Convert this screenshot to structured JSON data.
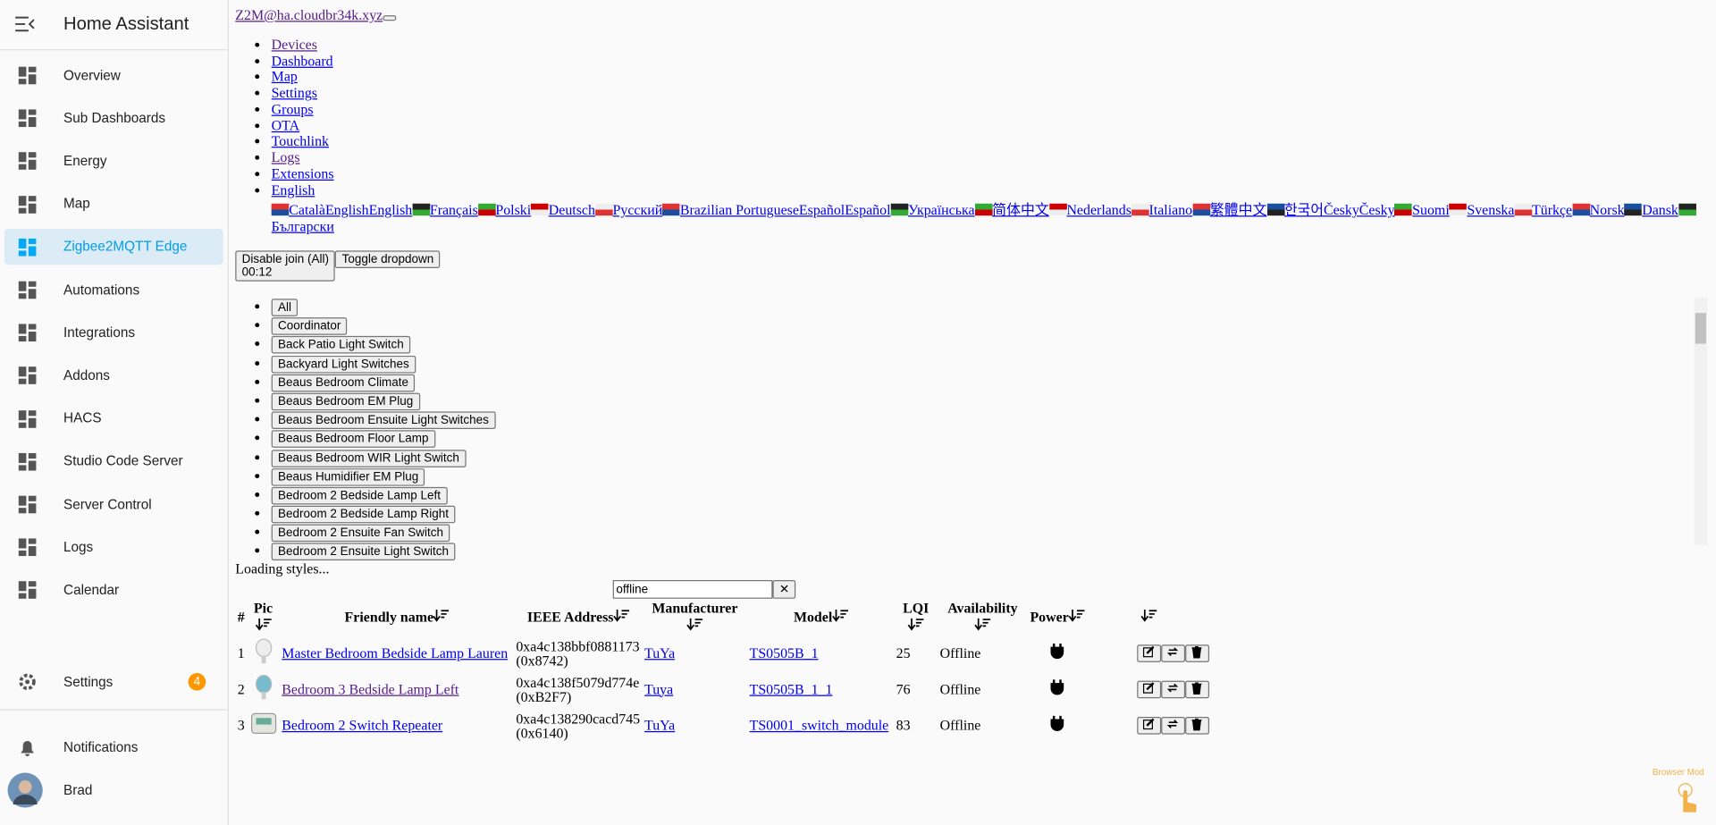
{
  "sidebar": {
    "title": "Home Assistant",
    "items": [
      {
        "label": "Overview"
      },
      {
        "label": "Sub Dashboards"
      },
      {
        "label": "Energy"
      },
      {
        "label": "Map"
      },
      {
        "label": "Zigbee2MQTT Edge"
      },
      {
        "label": "Automations"
      },
      {
        "label": "Integrations"
      },
      {
        "label": "Addons"
      },
      {
        "label": "HACS"
      },
      {
        "label": "Studio Code Server"
      },
      {
        "label": "Server Control"
      },
      {
        "label": "Logs"
      },
      {
        "label": "Calendar"
      }
    ],
    "settings": {
      "label": "Settings",
      "badge": "4"
    },
    "notifications": "Notifications",
    "user": "Brad"
  },
  "header": {
    "title": "Z2M@ha.cloudbr34k.xyz"
  },
  "nav": [
    "Devices",
    "Dashboard",
    "Map",
    "Settings",
    "Groups",
    "OTA",
    "Touchlink",
    "Logs",
    "Extensions"
  ],
  "nav_language": "English",
  "languages": [
    {
      "label": "Català"
    },
    {
      "alt": "English",
      "label": "English"
    },
    {
      "label": "Français"
    },
    {
      "label": "Polski"
    },
    {
      "label": "Deutsch"
    },
    {
      "label": "Русский"
    },
    {
      "label": "Brazilian Portuguese"
    },
    {
      "alt": "Español",
      "label": "Español"
    },
    {
      "label": "Українська"
    },
    {
      "label": "简体中文"
    },
    {
      "label": "Nederlands"
    },
    {
      "label": "Italiano"
    },
    {
      "label": "繁體中文"
    },
    {
      "label": "한국어"
    },
    {
      "alt": "Česky",
      "label": "Česky"
    },
    {
      "label": "Suomi"
    },
    {
      "label": "Svenska"
    },
    {
      "label": "Türkçe"
    },
    {
      "label": "Norsk"
    },
    {
      "label": "Dansk"
    },
    {
      "label": "Български"
    }
  ],
  "actions": {
    "join": "Disable join (All)",
    "timer": "00:12",
    "toggle": "Toggle dropdown"
  },
  "groups": [
    "All",
    "Coordinator",
    "Back Patio Light Switch",
    "Backyard Light Switches",
    "Beaus Bedroom Climate",
    "Beaus Bedroom EM Plug",
    "Beaus Bedroom Ensuite Light Switches",
    "Beaus Bedroom Floor Lamp",
    "Beaus Bedroom WIR Light Switch",
    "Beaus Humidifier EM Plug",
    "Bedroom 2 Bedside Lamp Left",
    "Bedroom 2 Bedside Lamp Right",
    "Bedroom 2 Ensuite Fan Switch",
    "Bedroom 2 Ensuite Light Switch"
  ],
  "loading": "Loading styles...",
  "search": "offline",
  "table": {
    "headers": [
      "#",
      "Pic",
      "Friendly name",
      "IEEE Address",
      "Manufacturer",
      "Model",
      "LQI",
      "Availability",
      "Power"
    ],
    "rows": [
      {
        "index": "1",
        "name": "Master Bedroom Bedside Lamp Lauren",
        "ieee": "0xa4c138bbf0881173",
        "nwk": "(0x8742)",
        "manufacturer": "TuYa",
        "model": "TS0505B_1",
        "lqi": 25,
        "availability": "Offline"
      },
      {
        "index": "2",
        "name": "Bedroom 3 Bedside Lamp Left",
        "ieee": "0xa4c138f5079d774e",
        "nwk": "(0xB2F7)",
        "manufacturer": "Tuya",
        "model": "TS0505B_1_1",
        "lqi": 76,
        "availability": "Offline"
      },
      {
        "index": "3",
        "name": "Bedroom 2 Switch Repeater",
        "ieee": "0xa4c138290cacd745",
        "nwk": "(0x6140)",
        "manufacturer": "TuYa",
        "model": "TS0001_switch_module",
        "lqi": 83,
        "availability": "Offline"
      }
    ]
  },
  "browser_mod": "Browser Mod"
}
